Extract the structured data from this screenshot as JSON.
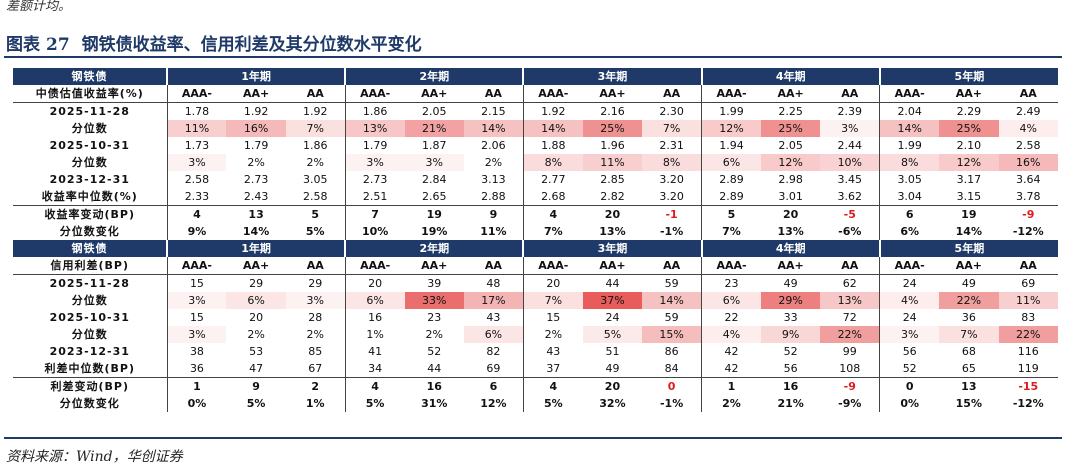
{
  "top_note": "差额计均。",
  "figure": {
    "label": "图表",
    "number": "27",
    "title": "钢铁债收益率、信用利差及其分位数水平变化"
  },
  "source": "资料来源：Wind，华创证券",
  "colors": {
    "header": "#1f3a68",
    "negative": "#e0191e"
  },
  "groups": [
    "1年期",
    "2年期",
    "3年期",
    "4年期",
    "5年期"
  ],
  "ratings": [
    "AAA-",
    "AA+",
    "AA"
  ],
  "sections": [
    {
      "name": "钢铁债",
      "sub_label": "中债估值收益率(%)",
      "rows": [
        {
          "label": "2025-11-28",
          "type": "val",
          "cells": [
            "1.78",
            "1.92",
            "1.92",
            "1.86",
            "2.05",
            "2.15",
            "1.92",
            "2.16",
            "2.30",
            "1.99",
            "2.25",
            "2.39",
            "2.04",
            "2.29",
            "2.49"
          ]
        },
        {
          "label": "分位数",
          "type": "pct",
          "cells": [
            "11%",
            "16%",
            "7%",
            "13%",
            "21%",
            "14%",
            "14%",
            "25%",
            "7%",
            "12%",
            "25%",
            "3%",
            "14%",
            "25%",
            "4%"
          ]
        },
        {
          "label": "2025-10-31",
          "type": "val",
          "cells": [
            "1.73",
            "1.79",
            "1.86",
            "1.79",
            "1.87",
            "2.06",
            "1.88",
            "1.96",
            "2.31",
            "1.94",
            "2.05",
            "2.44",
            "1.99",
            "2.10",
            "2.58"
          ]
        },
        {
          "label": "分位数",
          "type": "pct",
          "cells": [
            "3%",
            "2%",
            "2%",
            "3%",
            "3%",
            "2%",
            "8%",
            "11%",
            "8%",
            "6%",
            "12%",
            "10%",
            "8%",
            "12%",
            "16%"
          ]
        },
        {
          "label": "2023-12-31",
          "type": "val",
          "cells": [
            "2.58",
            "2.73",
            "3.05",
            "2.73",
            "2.84",
            "3.13",
            "2.77",
            "2.85",
            "3.20",
            "2.89",
            "2.98",
            "3.45",
            "3.05",
            "3.17",
            "3.64"
          ]
        },
        {
          "label": "收益率中位数(%)",
          "type": "val",
          "cells": [
            "2.33",
            "2.43",
            "2.58",
            "2.51",
            "2.65",
            "2.88",
            "2.68",
            "2.82",
            "3.20",
            "2.89",
            "3.01",
            "3.62",
            "3.04",
            "3.15",
            "3.78"
          ]
        },
        {
          "label": "收益率变动(BP)",
          "type": "chg",
          "cells": [
            "4",
            "13",
            "5",
            "7",
            "19",
            "9",
            "4",
            "20",
            "-1",
            "5",
            "20",
            "-5",
            "6",
            "19",
            "-9"
          ]
        },
        {
          "label": "分位数变化",
          "type": "chgpct",
          "cells": [
            "9%",
            "14%",
            "5%",
            "10%",
            "19%",
            "11%",
            "7%",
            "13%",
            "-1%",
            "7%",
            "13%",
            "-6%",
            "6%",
            "14%",
            "-12%"
          ]
        }
      ]
    },
    {
      "name": "钢铁债",
      "sub_label": "信用利差(BP)",
      "rows": [
        {
          "label": "2025-11-28",
          "type": "val",
          "cells": [
            "15",
            "29",
            "29",
            "20",
            "39",
            "48",
            "20",
            "44",
            "59",
            "23",
            "49",
            "62",
            "24",
            "49",
            "69"
          ]
        },
        {
          "label": "分位数",
          "type": "pct",
          "cells": [
            "3%",
            "6%",
            "3%",
            "6%",
            "33%",
            "17%",
            "7%",
            "37%",
            "14%",
            "6%",
            "29%",
            "13%",
            "4%",
            "22%",
            "11%"
          ]
        },
        {
          "label": "2025-10-31",
          "type": "val",
          "cells": [
            "15",
            "20",
            "28",
            "16",
            "23",
            "43",
            "15",
            "24",
            "59",
            "22",
            "33",
            "72",
            "24",
            "36",
            "83"
          ]
        },
        {
          "label": "分位数",
          "type": "pct",
          "cells": [
            "3%",
            "2%",
            "2%",
            "1%",
            "2%",
            "6%",
            "2%",
            "5%",
            "15%",
            "4%",
            "9%",
            "22%",
            "3%",
            "7%",
            "22%"
          ]
        },
        {
          "label": "2023-12-31",
          "type": "val",
          "cells": [
            "38",
            "53",
            "85",
            "41",
            "52",
            "82",
            "43",
            "51",
            "86",
            "42",
            "52",
            "99",
            "56",
            "68",
            "116"
          ]
        },
        {
          "label": "利差中位数(BP)",
          "type": "val",
          "cells": [
            "36",
            "47",
            "67",
            "34",
            "44",
            "69",
            "37",
            "49",
            "84",
            "42",
            "56",
            "108",
            "52",
            "65",
            "119"
          ]
        },
        {
          "label": "利差变动(BP)",
          "type": "chg",
          "cells": [
            "1",
            "9",
            "2",
            "4",
            "16",
            "6",
            "4",
            "20",
            "0",
            "1",
            "16",
            "-9",
            "0",
            "13",
            "-15"
          ]
        },
        {
          "label": "分位数变化",
          "type": "chgpct",
          "cells": [
            "0%",
            "5%",
            "1%",
            "5%",
            "31%",
            "12%",
            "5%",
            "32%",
            "-1%",
            "2%",
            "21%",
            "-9%",
            "0%",
            "15%",
            "-12%"
          ]
        }
      ]
    }
  ]
}
